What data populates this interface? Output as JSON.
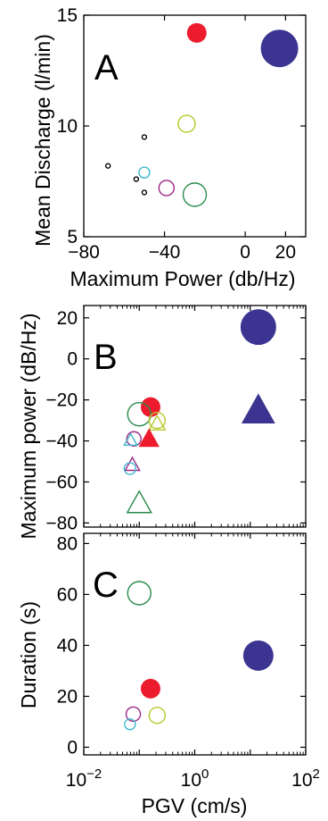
{
  "colors": {
    "red": "#ec1c2e",
    "blue": "#3b3591",
    "yellow": "#b9c92b",
    "green": "#2a8a4b",
    "cyan": "#3fb8d0",
    "magenta": "#9a2a86",
    "black": "#000000"
  },
  "chart_data": [
    {
      "type": "scatter",
      "panel_label": "A",
      "title": "",
      "xlabel": "Maximum Power (db/Hz)",
      "ylabel": "Mean Discharge (l/min)",
      "xlim": [
        -80,
        30
      ],
      "ylim": [
        5,
        15
      ],
      "xticks": [
        -80,
        -40,
        0,
        20
      ],
      "xtick_labels": [
        "−80",
        "−40",
        "0",
        "20"
      ],
      "yticks": [
        5,
        10,
        15
      ],
      "ytick_labels": [
        "5",
        "10",
        "15"
      ],
      "grid": false,
      "legend": "none",
      "points": [
        {
          "x": -24,
          "y": 14.2,
          "r": 11,
          "color": "red",
          "filled": true,
          "marker": "circle"
        },
        {
          "x": 17,
          "y": 13.5,
          "r": 21,
          "color": "blue",
          "filled": true,
          "marker": "circle"
        },
        {
          "x": -29,
          "y": 10.1,
          "r": 9.5,
          "color": "yellow",
          "filled": false,
          "marker": "circle"
        },
        {
          "x": -50,
          "y": 9.5,
          "r": 2.5,
          "color": "black",
          "filled": false,
          "marker": "circle"
        },
        {
          "x": -68,
          "y": 8.2,
          "r": 2.5,
          "color": "black",
          "filled": false,
          "marker": "circle"
        },
        {
          "x": -50,
          "y": 7.9,
          "r": 6,
          "color": "cyan",
          "filled": false,
          "marker": "circle"
        },
        {
          "x": -54,
          "y": 7.6,
          "r": 2.5,
          "color": "black",
          "filled": false,
          "marker": "circle"
        },
        {
          "x": -39,
          "y": 7.2,
          "r": 8.5,
          "color": "magenta",
          "filled": false,
          "marker": "circle"
        },
        {
          "x": -50,
          "y": 7.0,
          "r": 2.5,
          "color": "black",
          "filled": false,
          "marker": "circle"
        },
        {
          "x": -25,
          "y": 6.9,
          "r": 13,
          "color": "green",
          "filled": false,
          "marker": "circle"
        }
      ]
    },
    {
      "type": "scatter",
      "panel_label": "B",
      "title": "",
      "xlabel": "",
      "ylabel": "Maximum power (dB/Hz)",
      "xscale": "log",
      "xlim": [
        0.01,
        100
      ],
      "ylim": [
        -82,
        26
      ],
      "yticks": [
        -80,
        -60,
        -40,
        -20,
        0,
        20
      ],
      "ytick_labels": [
        "−80",
        "−60",
        "−40",
        "−20",
        "0",
        "20"
      ],
      "grid": false,
      "legend": "none",
      "points": [
        {
          "x": 14,
          "y": 15.5,
          "r": 20,
          "color": "blue",
          "filled": true,
          "marker": "circle"
        },
        {
          "x": 14,
          "y": -26,
          "r": 21,
          "color": "blue",
          "filled": true,
          "marker": "triangle"
        },
        {
          "x": 0.16,
          "y": -23.5,
          "r": 11,
          "color": "red",
          "filled": true,
          "marker": "circle"
        },
        {
          "x": 0.1,
          "y": -27,
          "r": 13,
          "color": "green",
          "filled": false,
          "marker": "circle"
        },
        {
          "x": 0.21,
          "y": -30,
          "r": 9,
          "color": "yellow",
          "filled": false,
          "marker": "circle"
        },
        {
          "x": 0.21,
          "y": -32,
          "r": 10,
          "color": "yellow",
          "filled": false,
          "marker": "triangle"
        },
        {
          "x": 0.15,
          "y": -39.5,
          "r": 13,
          "color": "red",
          "filled": true,
          "marker": "triangle"
        },
        {
          "x": 0.08,
          "y": -39,
          "r": 8,
          "color": "magenta",
          "filled": false,
          "marker": "circle"
        },
        {
          "x": 0.07,
          "y": -40,
          "r": 8,
          "color": "cyan",
          "filled": false,
          "marker": "triangle"
        },
        {
          "x": 0.075,
          "y": -52,
          "r": 9,
          "color": "magenta",
          "filled": false,
          "marker": "triangle"
        },
        {
          "x": 0.068,
          "y": -53.5,
          "r": 6.5,
          "color": "cyan",
          "filled": false,
          "marker": "circle"
        },
        {
          "x": 0.1,
          "y": -71,
          "r": 15,
          "color": "green",
          "filled": false,
          "marker": "triangle"
        }
      ]
    },
    {
      "type": "scatter",
      "panel_label": "C",
      "title": "",
      "xlabel": "PGV (cm/s)",
      "ylabel": "Duration (s)",
      "xscale": "log",
      "xlim": [
        0.01,
        100
      ],
      "ylim": [
        -3,
        84
      ],
      "xticks": [
        0.01,
        1,
        100
      ],
      "xtick_labels": [
        {
          "base": "10",
          "exp": "−2"
        },
        {
          "base": "10",
          "exp": "0"
        },
        {
          "base": "10",
          "exp": "2"
        }
      ],
      "yticks": [
        0,
        20,
        40,
        60,
        80
      ],
      "ytick_labels": [
        "0",
        "20",
        "40",
        "60",
        "80"
      ],
      "grid": false,
      "legend": "none",
      "points": [
        {
          "x": 0.1,
          "y": 60.5,
          "r": 13,
          "color": "green",
          "filled": false,
          "marker": "circle"
        },
        {
          "x": 14,
          "y": 36,
          "r": 17,
          "color": "blue",
          "filled": true,
          "marker": "circle"
        },
        {
          "x": 0.16,
          "y": 23,
          "r": 11,
          "color": "red",
          "filled": true,
          "marker": "circle"
        },
        {
          "x": 0.21,
          "y": 12.5,
          "r": 9,
          "color": "yellow",
          "filled": false,
          "marker": "circle"
        },
        {
          "x": 0.078,
          "y": 13,
          "r": 8,
          "color": "magenta",
          "filled": false,
          "marker": "circle"
        },
        {
          "x": 0.068,
          "y": 9,
          "r": 6,
          "color": "cyan",
          "filled": false,
          "marker": "circle"
        }
      ]
    }
  ]
}
